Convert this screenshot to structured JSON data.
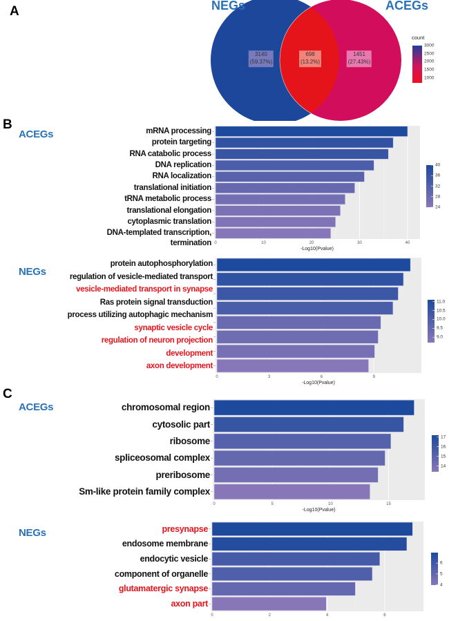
{
  "panels": {
    "a": "A",
    "b": "B",
    "c": "C"
  },
  "venn": {
    "left_title": "NEGs",
    "right_title": "ACEGs",
    "regions": [
      {
        "name": "NEGs only",
        "count": "3140",
        "percent": "(59.37%)",
        "color": "#1c479b"
      },
      {
        "name": "overlap",
        "count": "698",
        "percent": "(13.2%)",
        "color": "#e5141b"
      },
      {
        "name": "ACEGs only",
        "count": "1451",
        "percent": "(27.43%)",
        "color": "#d20e5c"
      }
    ],
    "legend": {
      "title": "count",
      "ticks": [
        "3000",
        "2500",
        "2000",
        "1500",
        "1000"
      ],
      "colors": [
        "#1f3f9a",
        "#d0145c",
        "#f01020"
      ]
    }
  },
  "colors": {
    "low": "#8877b8",
    "high": "#1d4a9d",
    "red_term": "#e8141c",
    "black_term": "#111111",
    "panel_bg": "#ebebeb"
  },
  "chart_data": [
    {
      "type": "bar",
      "orientation": "horizontal",
      "group": "ACEGs",
      "section": "B",
      "categories": [
        "mRNA processing",
        "protein targeting",
        "RNA catabolic process",
        "DNA replication",
        "RNA localization",
        "translational initiation",
        "tRNA metabolic process",
        "translational elongation",
        "cytoplasmic translation",
        "DNA-templated transcription,\ntermination"
      ],
      "highlight": [
        false,
        false,
        false,
        false,
        false,
        false,
        false,
        false,
        false,
        false
      ],
      "values": [
        40,
        37,
        36,
        33,
        31,
        29,
        27,
        26,
        25,
        24
      ],
      "xlabel": "-Log10(Pvalue)",
      "xlim": [
        0,
        42.3
      ],
      "xticks": [
        "0",
        "10",
        "20",
        "30",
        "40"
      ],
      "xtick_values": [
        0,
        10,
        20,
        30,
        40
      ],
      "legend_ticks": [
        "40",
        "36",
        "32",
        "28",
        "24"
      ],
      "legend_tick_values": [
        40,
        36,
        32,
        28,
        24
      ]
    },
    {
      "type": "bar",
      "orientation": "horizontal",
      "group": "NEGs",
      "section": "B",
      "categories": [
        "protein autophosphorylation",
        "regulation of vesicle-mediated transport",
        "vesicle-mediated transport in synapse",
        "Ras protein signal transduction",
        "process utilizing autophagic mechanism",
        "synaptic vesicle cycle",
        "regulation of neuron projection\ndevelopment",
        "axon development"
      ],
      "highlight": [
        false,
        false,
        true,
        false,
        false,
        true,
        true,
        true
      ],
      "values": [
        11.1,
        10.7,
        10.4,
        10.1,
        9.4,
        9.25,
        9.05,
        8.7
      ],
      "xlabel": "-Log10(Pvalue)",
      "xlim": [
        0,
        11.65
      ],
      "xticks": [
        "0",
        "3",
        "6",
        "9"
      ],
      "xtick_values": [
        0,
        3,
        6,
        9
      ],
      "legend_ticks": [
        "11.0",
        "10.5",
        "10.0",
        "9.5",
        "9.0"
      ],
      "legend_tick_values": [
        11,
        10.5,
        10,
        9.5,
        9
      ]
    },
    {
      "type": "bar",
      "orientation": "horizontal",
      "group": "ACEGs",
      "section": "C",
      "categories": [
        "chromosomal region",
        "cytosolic part",
        "ribosome",
        "spliceosomal complex",
        "preribosome",
        "Sm-like protein family complex"
      ],
      "highlight": [
        false,
        false,
        false,
        false,
        false,
        false
      ],
      "values": [
        17.2,
        16.3,
        15.2,
        14.7,
        14.1,
        13.4
      ],
      "xlabel": "-Log10(Pvalue)",
      "xlim": [
        0,
        18.0
      ],
      "xticks": [
        "0",
        "5",
        "10",
        "15"
      ],
      "xtick_values": [
        0,
        5,
        10,
        15
      ],
      "legend_ticks": [
        "17",
        "16",
        "15",
        "14"
      ],
      "legend_tick_values": [
        17,
        16,
        15,
        14
      ]
    },
    {
      "type": "bar",
      "orientation": "horizontal",
      "group": "NEGs",
      "section": "C",
      "categories": [
        "presynapse",
        "endosome membrane",
        "endocytic vesicle",
        "component of organelle",
        "glutamatergic synapse",
        "axon part"
      ],
      "highlight": [
        true,
        false,
        false,
        false,
        true,
        true
      ],
      "values": [
        6.97,
        6.77,
        5.83,
        5.57,
        4.98,
        3.97
      ],
      "xlabel": "",
      "xlim": [
        0,
        7.3
      ],
      "xticks": [
        "0",
        "2",
        "4",
        "6"
      ],
      "xtick_values": [
        0,
        2,
        4,
        6
      ],
      "legend_ticks": [
        "6",
        "5",
        "4"
      ],
      "legend_tick_values": [
        6,
        5,
        4
      ]
    }
  ]
}
